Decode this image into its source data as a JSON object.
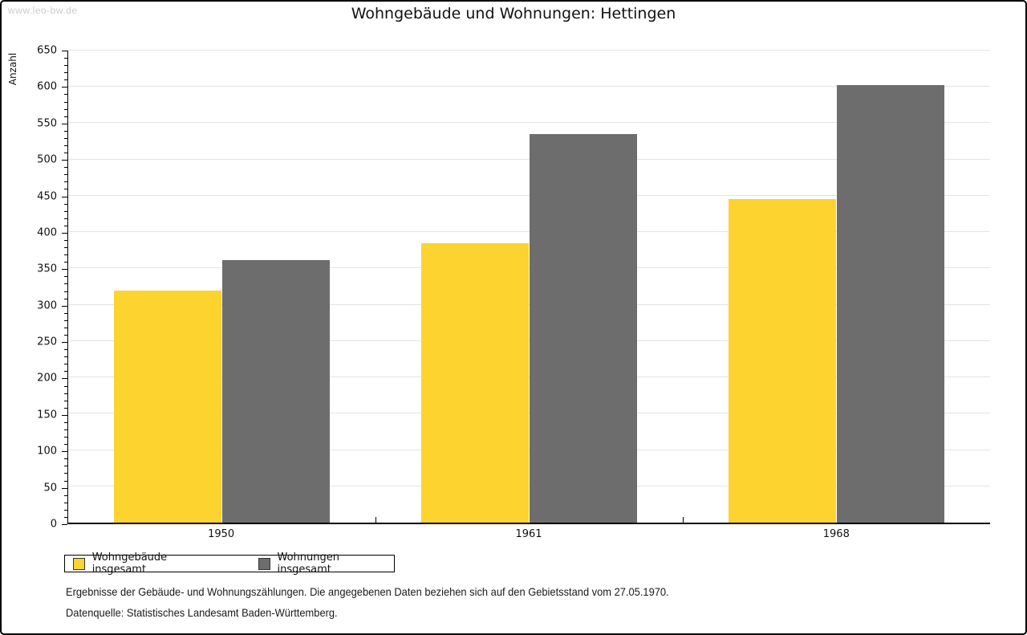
{
  "watermark": "www.leo-bw.de",
  "notes": {
    "line1": "Ergebnisse der Gebäude- und Wohnungszählungen. Die angegebenen Daten beziehen sich auf den Gebietsstand vom 27.05.1970.",
    "line2": "Datenquelle: Statistisches Landesamt Baden-Württemberg."
  },
  "chart_data": {
    "type": "bar",
    "title": "Wohngebäude und Wohnungen: Hettingen",
    "xlabel": "",
    "ylabel": "Anzahl",
    "categories": [
      "1950",
      "1961",
      "1968"
    ],
    "series": [
      {
        "name": "Wohngebäude insgesamt",
        "color": "#fcd32f",
        "values": [
          320,
          385,
          446
        ]
      },
      {
        "name": "Wohnungen insgesamt",
        "color": "#6d6d6d",
        "values": [
          362,
          535,
          602
        ]
      }
    ],
    "ylim": [
      0,
      650
    ],
    "yticks": [
      0,
      50,
      100,
      150,
      200,
      250,
      300,
      350,
      400,
      450,
      500,
      550,
      600,
      650
    ],
    "ytick_minor_step": 10,
    "grid": "horizontal-major",
    "legend_position": "bottom-left",
    "colors": {
      "grid": "#e4e4e4",
      "axis": "#000000",
      "watermark": "#cccccc"
    }
  }
}
